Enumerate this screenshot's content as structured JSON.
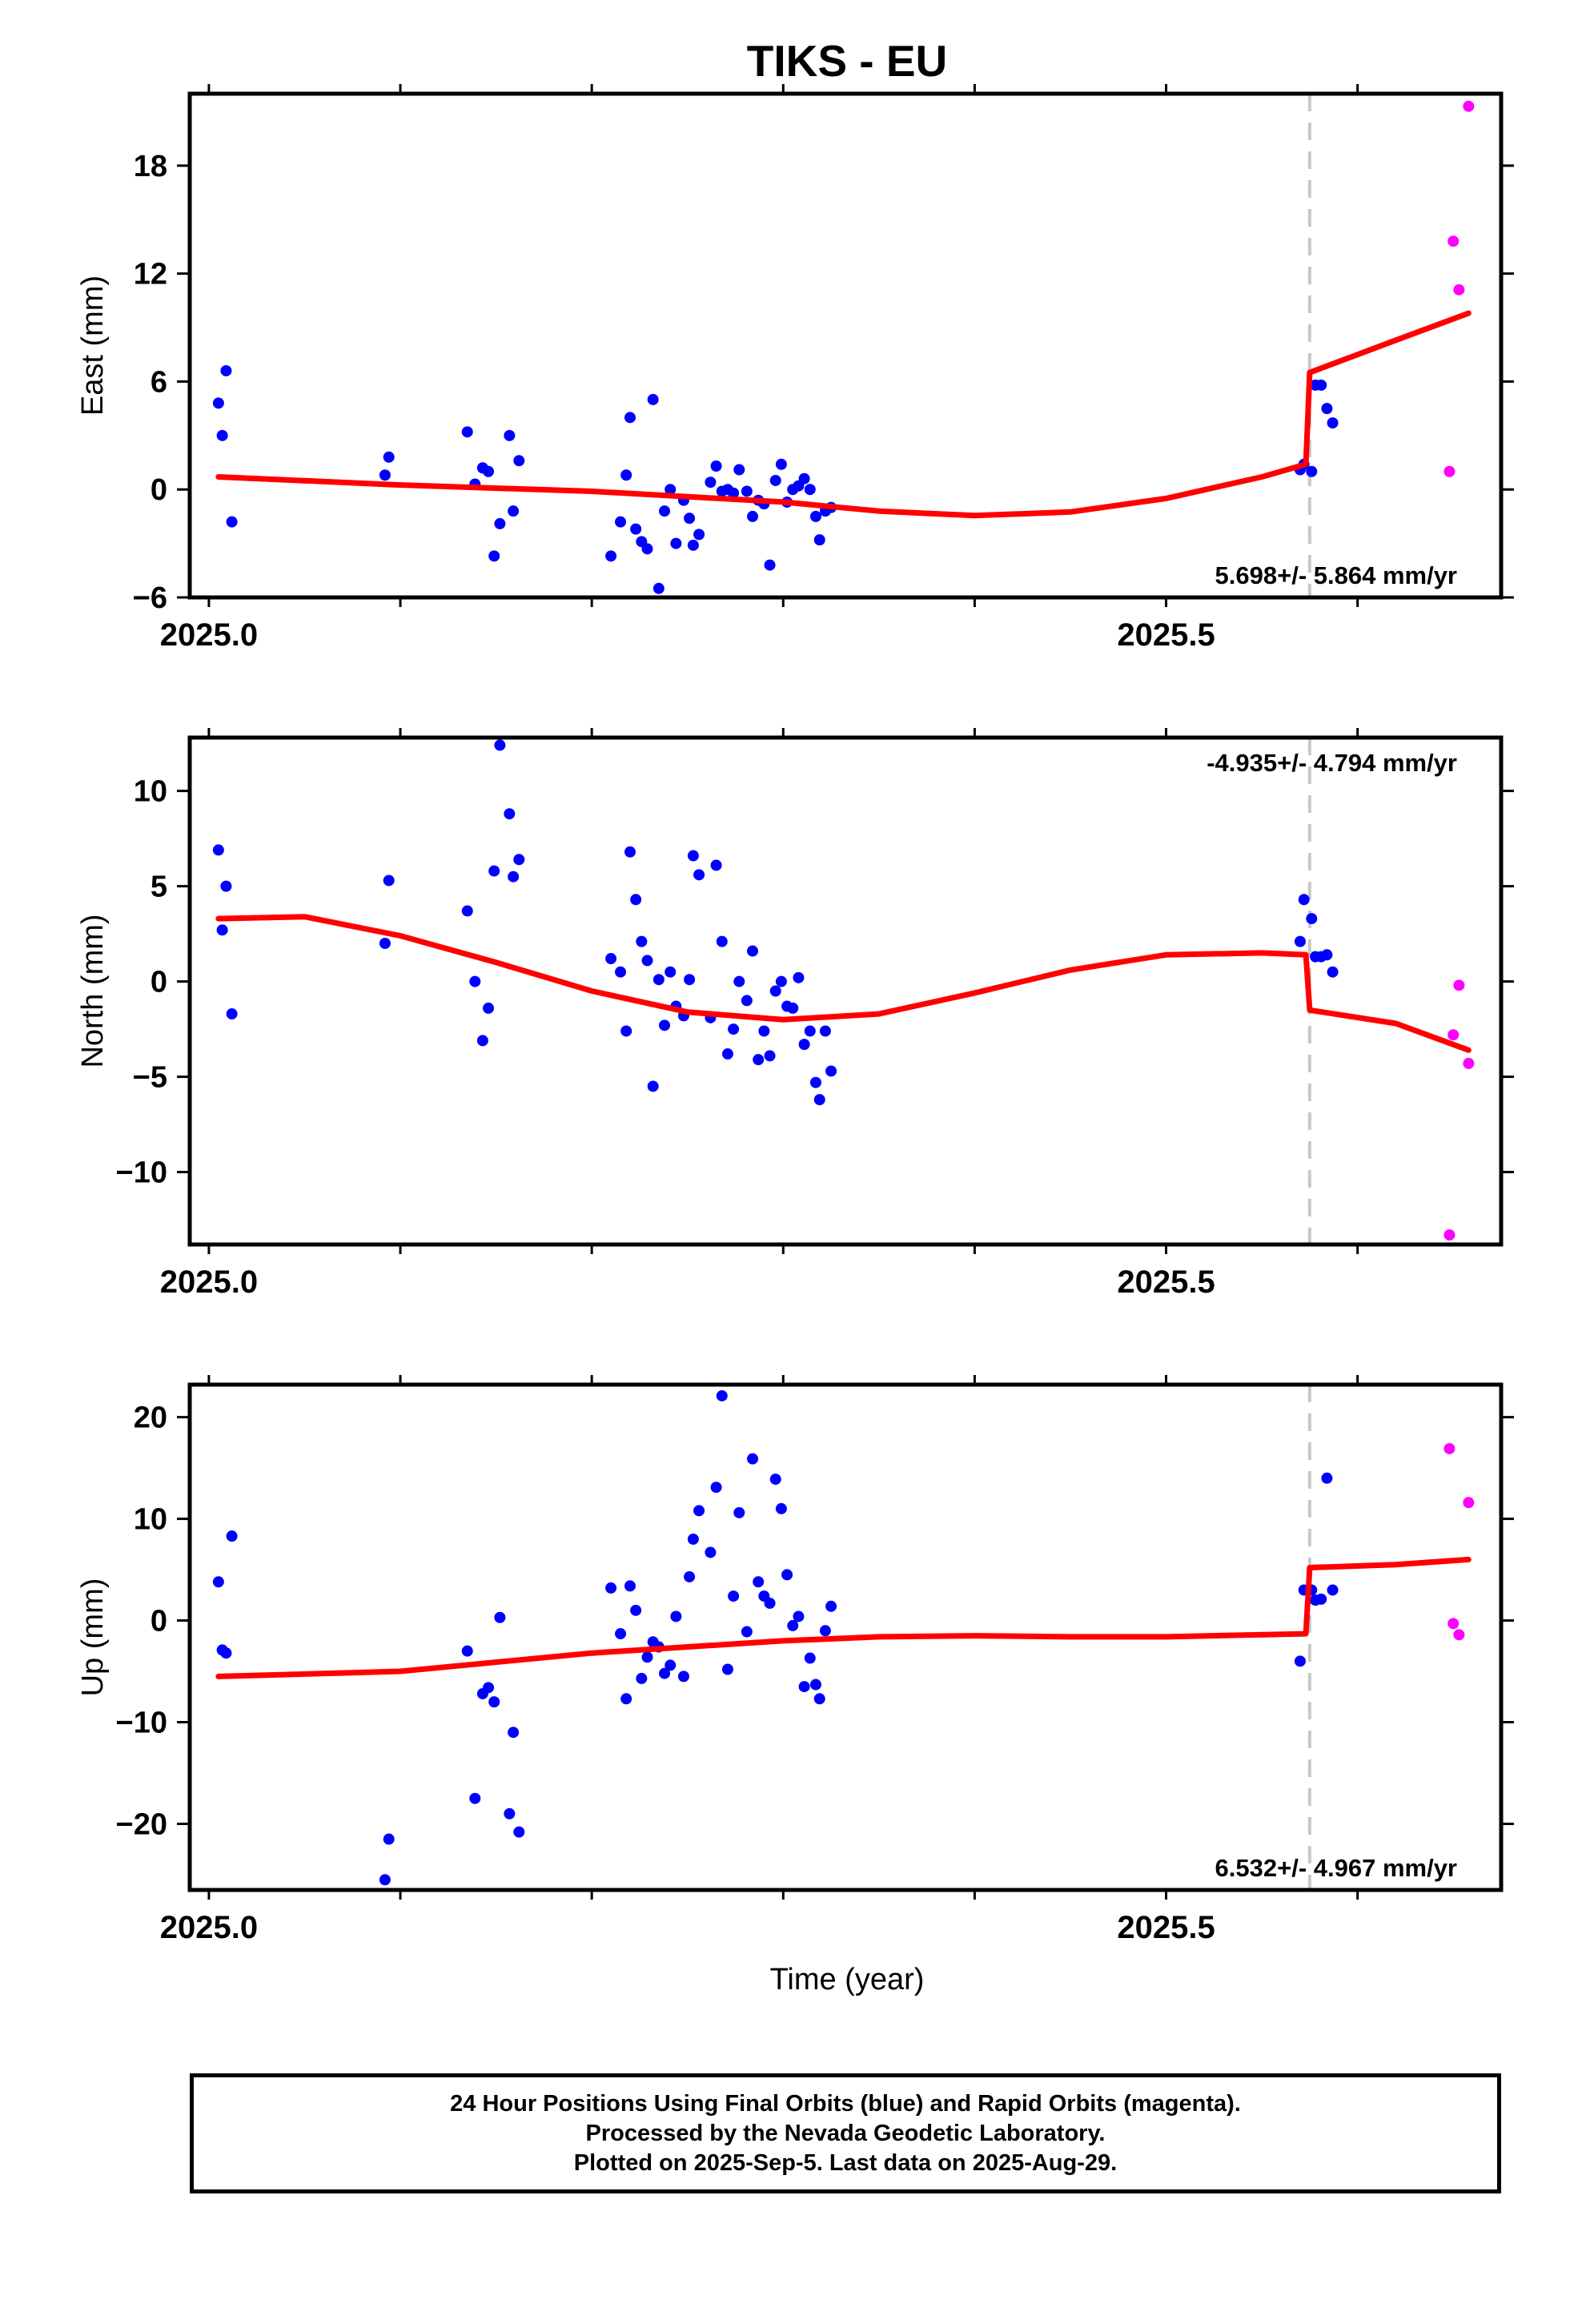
{
  "title": "TIKS - EU",
  "xlabel": "Time (year)",
  "colors": {
    "final_orbits": "#0000ff",
    "rapid_orbits": "#ff00ff",
    "model": "#ff0000",
    "equipment_change": "#c8c8c8"
  },
  "footnote": [
    "24 Hour Positions Using Final Orbits (blue) and Rapid Orbits (magenta).",
    "Processed by the Nevada Geodetic Laboratory.",
    "Plotted on 2025-Sep-5. Last data on 2025-Aug-29."
  ],
  "chart_data": [
    {
      "type": "scatter",
      "ylabel": "East (mm)",
      "rate_label": "5.698+/- 5.864 mm/yr",
      "xlim": [
        2024.99,
        2025.675
      ],
      "ylim": [
        -6,
        22
      ],
      "xticks": [
        2025.0,
        2025.5
      ],
      "xtick_labels": [
        "2025.0",
        "2025.5"
      ],
      "yticks": [
        -6,
        0,
        6,
        12,
        18
      ],
      "yticklabels": [
        "−6",
        "0",
        "6",
        "12",
        "18"
      ],
      "equipment_change": 2025.575,
      "final_orbits": [
        [
          2025.005,
          4.8
        ],
        [
          2025.007,
          3.0
        ],
        [
          2025.009,
          6.6
        ],
        [
          2025.012,
          -1.8
        ],
        [
          2025.092,
          0.8
        ],
        [
          2025.094,
          1.8
        ],
        [
          2025.135,
          3.2
        ],
        [
          2025.139,
          0.3
        ],
        [
          2025.143,
          1.2
        ],
        [
          2025.146,
          1.0
        ],
        [
          2025.149,
          -3.7
        ],
        [
          2025.152,
          -1.9
        ],
        [
          2025.157,
          3.0
        ],
        [
          2025.159,
          -1.2
        ],
        [
          2025.162,
          1.6
        ],
        [
          2025.21,
          -3.7
        ],
        [
          2025.215,
          -1.8
        ],
        [
          2025.218,
          0.8
        ],
        [
          2025.22,
          4.0
        ],
        [
          2025.223,
          -2.2
        ],
        [
          2025.226,
          -2.9
        ],
        [
          2025.229,
          -3.3
        ],
        [
          2025.232,
          5.0
        ],
        [
          2025.235,
          -5.5
        ],
        [
          2025.238,
          -1.2
        ],
        [
          2025.241,
          0.0
        ],
        [
          2025.244,
          -3.0
        ],
        [
          2025.248,
          -0.6
        ],
        [
          2025.251,
          -1.6
        ],
        [
          2025.253,
          -3.1
        ],
        [
          2025.256,
          -2.5
        ],
        [
          2025.262,
          0.4
        ],
        [
          2025.265,
          1.3
        ],
        [
          2025.268,
          -0.1
        ],
        [
          2025.271,
          0.0
        ],
        [
          2025.274,
          -0.2
        ],
        [
          2025.277,
          1.1
        ],
        [
          2025.281,
          -0.1
        ],
        [
          2025.284,
          -1.5
        ],
        [
          2025.287,
          -0.6
        ],
        [
          2025.29,
          -0.8
        ],
        [
          2025.293,
          -4.2
        ],
        [
          2025.296,
          0.5
        ],
        [
          2025.299,
          1.4
        ],
        [
          2025.302,
          -0.7
        ],
        [
          2025.305,
          0.0
        ],
        [
          2025.308,
          0.2
        ],
        [
          2025.311,
          0.6
        ],
        [
          2025.314,
          0.0
        ],
        [
          2025.317,
          -1.5
        ],
        [
          2025.319,
          -2.8
        ],
        [
          2025.322,
          -1.2
        ],
        [
          2025.325,
          -1.0
        ],
        [
          2025.57,
          1.1
        ],
        [
          2025.572,
          1.4
        ],
        [
          2025.576,
          1.0
        ],
        [
          2025.578,
          5.8
        ],
        [
          2025.581,
          5.8
        ],
        [
          2025.584,
          4.5
        ],
        [
          2025.587,
          3.7
        ]
      ],
      "rapid_orbits": [
        [
          2025.648,
          1.0
        ],
        [
          2025.65,
          13.8
        ],
        [
          2025.653,
          11.1
        ],
        [
          2025.658,
          21.3
        ]
      ],
      "model": [
        [
          2025.005,
          0.7
        ],
        [
          2025.1,
          0.25
        ],
        [
          2025.2,
          -0.1
        ],
        [
          2025.3,
          -0.7
        ],
        [
          2025.35,
          -1.2
        ],
        [
          2025.4,
          -1.45
        ],
        [
          2025.45,
          -1.25
        ],
        [
          2025.5,
          -0.5
        ],
        [
          2025.55,
          0.7
        ],
        [
          2025.573,
          1.4
        ],
        [
          2025.575,
          6.5
        ],
        [
          2025.62,
          8.3
        ],
        [
          2025.658,
          9.8
        ]
      ]
    },
    {
      "type": "scatter",
      "ylabel": "North (mm)",
      "rate_label": "-4.935+/- 4.794 mm/yr",
      "xlim": [
        2024.99,
        2025.675
      ],
      "ylim": [
        -13.8,
        12.8
      ],
      "xticks": [
        2025.0,
        2025.5
      ],
      "xtick_labels": [
        "2025.0",
        "2025.5"
      ],
      "yticks": [
        -10,
        -5,
        0,
        5,
        10
      ],
      "yticklabels": [
        "−10",
        "−5",
        "0",
        "5",
        "10"
      ],
      "equipment_change": 2025.575,
      "final_orbits": [
        [
          2025.005,
          6.9
        ],
        [
          2025.007,
          2.7
        ],
        [
          2025.009,
          5.0
        ],
        [
          2025.012,
          -1.7
        ],
        [
          2025.092,
          2.0
        ],
        [
          2025.094,
          5.3
        ],
        [
          2025.135,
          3.7
        ],
        [
          2025.139,
          0.0
        ],
        [
          2025.143,
          -3.1
        ],
        [
          2025.146,
          -1.4
        ],
        [
          2025.149,
          5.8
        ],
        [
          2025.152,
          12.4
        ],
        [
          2025.157,
          8.8
        ],
        [
          2025.159,
          5.5
        ],
        [
          2025.162,
          6.4
        ],
        [
          2025.21,
          1.2
        ],
        [
          2025.215,
          0.5
        ],
        [
          2025.218,
          -2.6
        ],
        [
          2025.22,
          6.8
        ],
        [
          2025.223,
          4.3
        ],
        [
          2025.226,
          2.1
        ],
        [
          2025.229,
          1.1
        ],
        [
          2025.232,
          -5.5
        ],
        [
          2025.235,
          0.1
        ],
        [
          2025.238,
          -2.3
        ],
        [
          2025.241,
          0.5
        ],
        [
          2025.244,
          -1.3
        ],
        [
          2025.248,
          -1.8
        ],
        [
          2025.251,
          0.1
        ],
        [
          2025.253,
          6.6
        ],
        [
          2025.256,
          5.6
        ],
        [
          2025.262,
          -1.9
        ],
        [
          2025.265,
          6.1
        ],
        [
          2025.268,
          2.1
        ],
        [
          2025.271,
          -3.8
        ],
        [
          2025.274,
          -2.5
        ],
        [
          2025.277,
          0.0
        ],
        [
          2025.281,
          -1.0
        ],
        [
          2025.284,
          1.6
        ],
        [
          2025.287,
          -4.1
        ],
        [
          2025.29,
          -2.6
        ],
        [
          2025.293,
          -3.9
        ],
        [
          2025.296,
          -0.5
        ],
        [
          2025.299,
          0.0
        ],
        [
          2025.302,
          -1.3
        ],
        [
          2025.305,
          -1.4
        ],
        [
          2025.308,
          0.2
        ],
        [
          2025.311,
          -3.3
        ],
        [
          2025.314,
          -2.6
        ],
        [
          2025.317,
          -5.3
        ],
        [
          2025.319,
          -6.2
        ],
        [
          2025.322,
          -2.6
        ],
        [
          2025.325,
          -4.7
        ],
        [
          2025.57,
          2.1
        ],
        [
          2025.572,
          4.3
        ],
        [
          2025.576,
          3.3
        ],
        [
          2025.578,
          1.3
        ],
        [
          2025.581,
          1.3
        ],
        [
          2025.584,
          1.4
        ],
        [
          2025.587,
          0.5
        ]
      ],
      "rapid_orbits": [
        [
          2025.648,
          -13.3
        ],
        [
          2025.65,
          -2.8
        ],
        [
          2025.653,
          -0.2
        ],
        [
          2025.658,
          -4.3
        ]
      ],
      "model": [
        [
          2025.005,
          3.3
        ],
        [
          2025.05,
          3.4
        ],
        [
          2025.1,
          2.4
        ],
        [
          2025.15,
          1.0
        ],
        [
          2025.2,
          -0.5
        ],
        [
          2025.25,
          -1.6
        ],
        [
          2025.3,
          -2.0
        ],
        [
          2025.35,
          -1.7
        ],
        [
          2025.4,
          -0.6
        ],
        [
          2025.45,
          0.6
        ],
        [
          2025.5,
          1.4
        ],
        [
          2025.55,
          1.5
        ],
        [
          2025.573,
          1.4
        ],
        [
          2025.575,
          -1.5
        ],
        [
          2025.62,
          -2.2
        ],
        [
          2025.658,
          -3.6
        ]
      ]
    },
    {
      "type": "scatter",
      "ylabel": "Up (mm)",
      "rate_label": "6.532+/- 4.967 mm/yr",
      "xlabel": "Time (year)",
      "xlim": [
        2024.99,
        2025.675
      ],
      "ylim": [
        -26.5,
        23.2
      ],
      "xticks": [
        2025.0,
        2025.5
      ],
      "xtick_labels": [
        "2025.0",
        "2025.5"
      ],
      "yticks": [
        -20,
        -10,
        0,
        10,
        20
      ],
      "yticklabels": [
        "−20",
        "−10",
        "0",
        "10",
        "20"
      ],
      "equipment_change": 2025.575,
      "final_orbits": [
        [
          2025.005,
          3.8
        ],
        [
          2025.007,
          -2.9
        ],
        [
          2025.009,
          -3.2
        ],
        [
          2025.012,
          8.3
        ],
        [
          2025.092,
          -25.5
        ],
        [
          2025.094,
          -21.5
        ],
        [
          2025.135,
          -3.0
        ],
        [
          2025.139,
          -17.5
        ],
        [
          2025.143,
          -7.2
        ],
        [
          2025.146,
          -6.6
        ],
        [
          2025.149,
          -8.0
        ],
        [
          2025.152,
          0.3
        ],
        [
          2025.157,
          -19.0
        ],
        [
          2025.159,
          -11.0
        ],
        [
          2025.162,
          -20.8
        ],
        [
          2025.21,
          3.2
        ],
        [
          2025.215,
          -1.3
        ],
        [
          2025.218,
          -7.7
        ],
        [
          2025.22,
          3.4
        ],
        [
          2025.223,
          1.0
        ],
        [
          2025.226,
          -5.7
        ],
        [
          2025.229,
          -3.6
        ],
        [
          2025.232,
          -2.1
        ],
        [
          2025.235,
          -2.6
        ],
        [
          2025.238,
          -5.2
        ],
        [
          2025.241,
          -4.4
        ],
        [
          2025.244,
          0.4
        ],
        [
          2025.248,
          -5.5
        ],
        [
          2025.251,
          4.3
        ],
        [
          2025.253,
          8.0
        ],
        [
          2025.256,
          10.8
        ],
        [
          2025.262,
          6.7
        ],
        [
          2025.265,
          13.1
        ],
        [
          2025.268,
          22.1
        ],
        [
          2025.271,
          -4.8
        ],
        [
          2025.274,
          2.4
        ],
        [
          2025.277,
          10.6
        ],
        [
          2025.281,
          -1.1
        ],
        [
          2025.284,
          15.9
        ],
        [
          2025.287,
          3.8
        ],
        [
          2025.29,
          2.4
        ],
        [
          2025.293,
          1.7
        ],
        [
          2025.296,
          13.9
        ],
        [
          2025.299,
          11.0
        ],
        [
          2025.302,
          4.5
        ],
        [
          2025.305,
          -0.5
        ],
        [
          2025.308,
          0.4
        ],
        [
          2025.311,
          -6.5
        ],
        [
          2025.314,
          -3.7
        ],
        [
          2025.317,
          -6.3
        ],
        [
          2025.319,
          -7.7
        ],
        [
          2025.322,
          -1.0
        ],
        [
          2025.325,
          1.4
        ],
        [
          2025.57,
          -4.0
        ],
        [
          2025.572,
          3.0
        ],
        [
          2025.576,
          3.0
        ],
        [
          2025.578,
          2.0
        ],
        [
          2025.581,
          2.1
        ],
        [
          2025.584,
          14.0
        ],
        [
          2025.587,
          3.0
        ]
      ],
      "rapid_orbits": [
        [
          2025.648,
          16.9
        ],
        [
          2025.65,
          -0.3
        ],
        [
          2025.653,
          -1.4
        ],
        [
          2025.658,
          11.6
        ]
      ],
      "model": [
        [
          2025.005,
          -5.5
        ],
        [
          2025.1,
          -5.0
        ],
        [
          2025.2,
          -3.2
        ],
        [
          2025.3,
          -2.0
        ],
        [
          2025.35,
          -1.6
        ],
        [
          2025.4,
          -1.5
        ],
        [
          2025.45,
          -1.6
        ],
        [
          2025.5,
          -1.6
        ],
        [
          2025.573,
          -1.3
        ],
        [
          2025.575,
          5.2
        ],
        [
          2025.62,
          5.5
        ],
        [
          2025.658,
          6.0
        ]
      ]
    }
  ]
}
